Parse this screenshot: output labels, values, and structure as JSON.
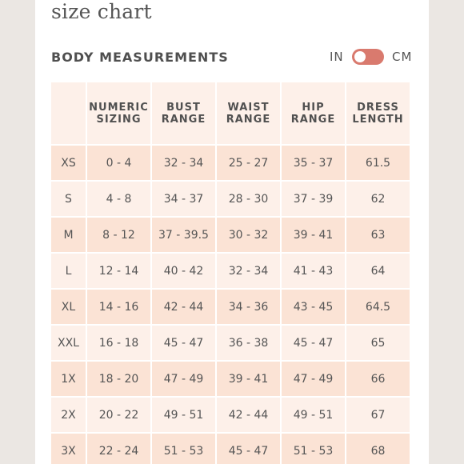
{
  "title": "size chart",
  "section_title": "BODY MEASUREMENTS",
  "unit_toggle": {
    "left_label": "IN",
    "right_label": "CM",
    "accent_color": "#d97a6e"
  },
  "table": {
    "headers": [
      [
        "",
        ""
      ],
      [
        "NUMERIC",
        "SIZING"
      ],
      [
        "BUST",
        "RANGE"
      ],
      [
        "WAIST",
        "RANGE"
      ],
      [
        "HIP",
        "RANGE"
      ],
      [
        "DRESS",
        "LENGTH"
      ]
    ],
    "rows": [
      [
        "XS",
        "0 - 4",
        "32 - 34",
        "25 - 27",
        "35 - 37",
        "61.5"
      ],
      [
        "S",
        "4 - 8",
        "34 - 37",
        "28 - 30",
        "37 - 39",
        "62"
      ],
      [
        "M",
        "8 - 12",
        "37 - 39.5",
        "30 - 32",
        "39 - 41",
        "63"
      ],
      [
        "L",
        "12 - 14",
        "40 - 42",
        "32 - 34",
        "41 - 43",
        "64"
      ],
      [
        "XL",
        "14 - 16",
        "42 - 44",
        "34 - 36",
        "43 - 45",
        "64.5"
      ],
      [
        "XXL",
        "16 - 18",
        "45 - 47",
        "36 - 38",
        "45 - 47",
        "65"
      ],
      [
        "1X",
        "18 - 20",
        "47 - 49",
        "39 - 41",
        "47 - 49",
        "66"
      ],
      [
        "2X",
        "20 - 22",
        "49 - 51",
        "42 - 44",
        "49 - 51",
        "67"
      ],
      [
        "3X",
        "22 - 24",
        "51 - 53",
        "45 - 47",
        "51 - 53",
        "68"
      ]
    ]
  }
}
